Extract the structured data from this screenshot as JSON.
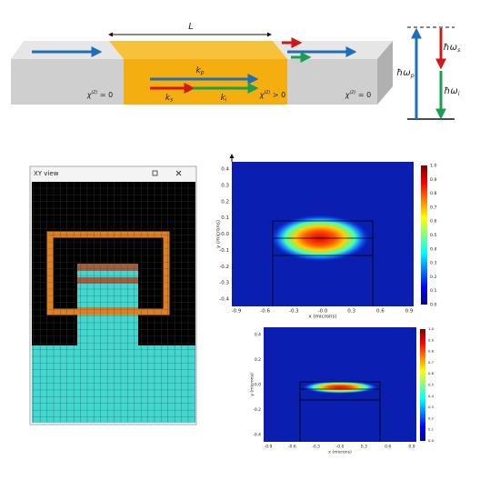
{
  "waveguide": {
    "length_label": "L",
    "wave_labels": [
      {
        "base": "k",
        "sub": "p"
      },
      {
        "base": "k",
        "sub": "s"
      },
      {
        "base": "k",
        "sub": "i"
      }
    ],
    "chi_labels": [
      {
        "base": "χ",
        "sup": "(2)",
        "tail": " = 0"
      },
      {
        "base": "χ",
        "sup": "(2)",
        "tail": " > 0"
      },
      {
        "base": "χ",
        "sup": "(2)",
        "tail": " = 0"
      }
    ]
  },
  "energy_levels": {
    "labels": [
      {
        "base": "ħω",
        "sub": "p"
      },
      {
        "base": "ħω",
        "sub": "s"
      },
      {
        "base": "ħω",
        "sub": "i"
      }
    ]
  },
  "xy_view": {
    "title": "XY view"
  },
  "plots": [
    {
      "x_label": "x (microns)",
      "y_label": "y (microns)",
      "x_ticks": [
        "-0.9",
        "-0.6",
        "-0.3",
        "-0.0",
        "0.3",
        "0.6",
        "0.9"
      ],
      "y_ticks": [
        "0.4",
        "0.3",
        "0.2",
        "0.1",
        "-0.0",
        "-0.1",
        "-0.2",
        "-0.3",
        "-0.4"
      ],
      "colorbar_ticks": [
        "1.0",
        "0.9",
        "0.8",
        "0.7",
        "0.6",
        "0.5",
        "0.4",
        "0.3",
        "0.2",
        "0.1",
        "0.0"
      ]
    },
    {
      "x_label": "x (microns)",
      "y_label": "y (microns)",
      "x_ticks": [
        "-0.9",
        "-0.6",
        "-0.3",
        "-0.0",
        "0.3",
        "0.6",
        "0.9"
      ],
      "y_ticks": [
        "0.4",
        "0.2",
        "-0.0",
        "-0.2",
        "-0.4"
      ],
      "colorbar_ticks": [
        "1.0",
        "0.9",
        "0.8",
        "0.7",
        "0.6",
        "0.5",
        "0.4",
        "0.3",
        "0.2",
        "0.1",
        "0.0"
      ]
    }
  ]
}
